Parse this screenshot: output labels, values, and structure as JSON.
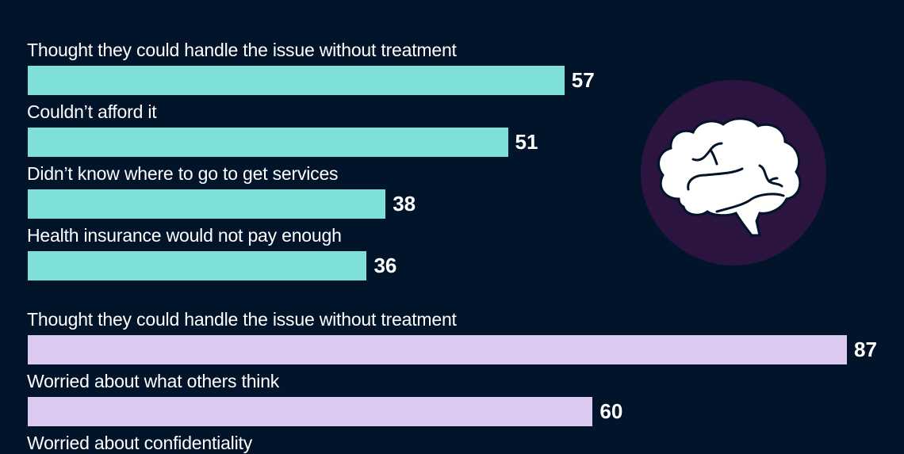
{
  "colors": {
    "background": "#02142a",
    "group1_bar": "#7fe0d8",
    "group2_bar": "#dccaf2",
    "icon_circle": "#2c1440",
    "text": "#ffffff"
  },
  "icon": {
    "name": "brain-icon"
  },
  "chart_data": {
    "type": "bar",
    "orientation": "horizontal",
    "title": "",
    "xlabel": "",
    "ylabel": "",
    "xlim": [
      0,
      87
    ],
    "grid": false,
    "groups": [
      {
        "name": "group-1",
        "color": "#7fe0d8",
        "categories": [
          "Thought they could handle the issue without treatment",
          "Couldn’t afford it",
          "Didn’t know where to go to get services",
          "Health insurance would not pay enough"
        ],
        "values": [
          57,
          51,
          38,
          36
        ]
      },
      {
        "name": "group-2",
        "color": "#dccaf2",
        "categories": [
          "Thought they could handle the issue without treatment",
          "Worried about what others think",
          "Worried about confidentiality"
        ],
        "values": [
          87,
          60,
          null
        ]
      }
    ]
  }
}
